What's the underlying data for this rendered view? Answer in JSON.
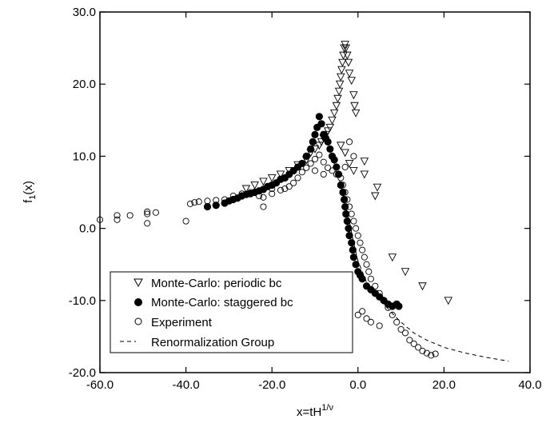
{
  "chart_data": {
    "type": "scatter",
    "title": "",
    "xlabel": {
      "base": "x=tH",
      "sup": "1/ν"
    },
    "ylabel": {
      "base": "f",
      "sub": "1",
      "tail": "(x)"
    },
    "xlim": [
      -60,
      40
    ],
    "ylim": [
      -20,
      30
    ],
    "xticks": [
      -60,
      -40,
      -20,
      0,
      20,
      40
    ],
    "yticks": [
      -20,
      -10,
      0,
      10,
      20,
      30
    ],
    "xtick_labels": [
      "-60.0",
      "-40.0",
      "-20.0",
      "0.0",
      "20.0",
      "40.0"
    ],
    "ytick_labels": [
      "-20.0",
      "-10.0",
      "0.0",
      "10.0",
      "20.0",
      "30.0"
    ],
    "grid": false,
    "legend_position": "bottom-left",
    "series": [
      {
        "name": "Monte-Carlo: periodic bc",
        "marker": "triangle-down-open",
        "points": [
          [
            -26,
            5.5
          ],
          [
            -24,
            6.0
          ],
          [
            -22,
            6.5
          ],
          [
            -20,
            7.0
          ],
          [
            -18,
            7.5
          ],
          [
            -16,
            8.0
          ],
          [
            -14,
            8.8
          ],
          [
            -12,
            9.5
          ],
          [
            -11,
            10.5
          ],
          [
            -10,
            11.0
          ],
          [
            -9,
            11.5
          ],
          [
            -8.5,
            12.0
          ],
          [
            -8,
            12.5
          ],
          [
            -7.5,
            13.0
          ],
          [
            -7,
            13.5
          ],
          [
            -6.5,
            14.0
          ],
          [
            -6,
            15.0
          ],
          [
            -5.5,
            16.0
          ],
          [
            -5,
            17.0
          ],
          [
            -4.7,
            18.0
          ],
          [
            -4.4,
            19.0
          ],
          [
            -4.2,
            20.0
          ],
          [
            -4,
            21.0
          ],
          [
            -3.8,
            22.0
          ],
          [
            -3.6,
            23.0
          ],
          [
            -3.4,
            24.0
          ],
          [
            -3.2,
            25.0
          ],
          [
            -3.0,
            25.5
          ],
          [
            -2.8,
            25.0
          ],
          [
            -2.5,
            24.0
          ],
          [
            -2.2,
            23.0
          ],
          [
            -2.0,
            21.5
          ],
          [
            -1.5,
            20.5
          ],
          [
            -1.0,
            18.5
          ],
          [
            -0.8,
            17.0
          ],
          [
            -0.5,
            16.0
          ],
          [
            1.5,
            9.3
          ],
          [
            1.5,
            7.5
          ],
          [
            4,
            4.5
          ],
          [
            4.5,
            5.7
          ],
          [
            -1,
            8.0
          ],
          [
            -2,
            9.0
          ],
          [
            -3,
            10.5
          ],
          [
            -4,
            11.5
          ],
          [
            8,
            -4.0
          ],
          [
            11,
            -6.0
          ],
          [
            15,
            -8.0
          ],
          [
            21,
            -10.0
          ]
        ]
      },
      {
        "name": "Monte-Carlo: staggered bc",
        "marker": "circle-filled",
        "points": [
          [
            -35,
            3.0
          ],
          [
            -33,
            3.2
          ],
          [
            -31,
            3.5
          ],
          [
            -30,
            3.8
          ],
          [
            -29,
            4.0
          ],
          [
            -28,
            4.2
          ],
          [
            -27,
            4.5
          ],
          [
            -26,
            4.7
          ],
          [
            -25,
            4.8
          ],
          [
            -24,
            5.0
          ],
          [
            -23,
            5.2
          ],
          [
            -22,
            5.4
          ],
          [
            -21,
            5.8
          ],
          [
            -20,
            6.0
          ],
          [
            -19,
            6.3
          ],
          [
            -18,
            6.8
          ],
          [
            -17,
            7.0
          ],
          [
            -16,
            7.5
          ],
          [
            -15,
            8.0
          ],
          [
            -14,
            8.5
          ],
          [
            -13,
            9.0
          ],
          [
            -12,
            10.0
          ],
          [
            -11,
            11.0
          ],
          [
            -10.5,
            12.0
          ],
          [
            -10,
            13.0
          ],
          [
            -9.5,
            14.0
          ],
          [
            -9,
            15.5
          ],
          [
            -8.5,
            14.5
          ],
          [
            -8,
            13.0
          ],
          [
            -7.5,
            12.5
          ],
          [
            -7,
            12.0
          ],
          [
            -6.5,
            11.0
          ],
          [
            -6,
            10.0
          ],
          [
            -5.5,
            9.5
          ],
          [
            -5,
            8.5
          ],
          [
            -4.5,
            7.5
          ],
          [
            -4,
            6.0
          ],
          [
            -3.5,
            5.0
          ],
          [
            -3.2,
            4.0
          ],
          [
            -3,
            3.0
          ],
          [
            -2.8,
            2.0
          ],
          [
            -2.5,
            1.0
          ],
          [
            -2.2,
            0.0
          ],
          [
            -2.0,
            -1.0
          ],
          [
            -1.5,
            -2.0
          ],
          [
            -1.2,
            -3.0
          ],
          [
            -1.0,
            -4.0
          ],
          [
            -0.5,
            -5.0
          ],
          [
            0,
            -6.0
          ],
          [
            0.5,
            -6.5
          ],
          [
            1,
            -7.0
          ],
          [
            2,
            -8.0
          ],
          [
            3,
            -8.5
          ],
          [
            4,
            -9.0
          ],
          [
            5,
            -9.5
          ],
          [
            6,
            -10.0
          ],
          [
            7,
            -10.5
          ],
          [
            8,
            -10.8
          ],
          [
            9,
            -10.5
          ],
          [
            9.5,
            -10.8
          ]
        ]
      },
      {
        "name": "Experiment",
        "marker": "circle-open",
        "points": [
          [
            -60,
            1.2
          ],
          [
            -56,
            1.2
          ],
          [
            -56,
            1.8
          ],
          [
            -53,
            1.8
          ],
          [
            -49,
            0.7
          ],
          [
            -49,
            2.0
          ],
          [
            -49,
            2.3
          ],
          [
            -47,
            2.2
          ],
          [
            -40,
            1.0
          ],
          [
            -39,
            3.4
          ],
          [
            -38,
            3.6
          ],
          [
            -37,
            3.7
          ],
          [
            -35,
            3.8
          ],
          [
            -33,
            3.9
          ],
          [
            -31,
            4.0
          ],
          [
            -29,
            4.5
          ],
          [
            -27,
            4.8
          ],
          [
            -25,
            5.0
          ],
          [
            -23,
            4.5
          ],
          [
            -22,
            4.3
          ],
          [
            -20,
            4.8
          ],
          [
            -18,
            5.3
          ],
          [
            -17,
            5.5
          ],
          [
            -16,
            5.8
          ],
          [
            -15,
            6.3
          ],
          [
            -14,
            7.0
          ],
          [
            -13,
            7.8
          ],
          [
            -12,
            8.4
          ],
          [
            -11,
            9.0
          ],
          [
            -10,
            9.6
          ],
          [
            -9,
            10.2
          ],
          [
            -8,
            9.2
          ],
          [
            -7,
            8.4
          ],
          [
            -6,
            8.0
          ],
          [
            -5,
            7.5
          ],
          [
            -4,
            7.0
          ],
          [
            -3.5,
            6.0
          ],
          [
            -3,
            5.0
          ],
          [
            -2.5,
            4.0
          ],
          [
            -2,
            3.0
          ],
          [
            -1.5,
            2.0
          ],
          [
            -1.0,
            1.0
          ],
          [
            -0.5,
            0.0
          ],
          [
            0,
            -1.0
          ],
          [
            0.5,
            -2.0
          ],
          [
            1,
            -3.0
          ],
          [
            1.5,
            -4.0
          ],
          [
            2,
            -5.0
          ],
          [
            2.5,
            -6.0
          ],
          [
            3,
            -7.0
          ],
          [
            4,
            -8.0
          ],
          [
            5,
            -9.0
          ],
          [
            6,
            -10.0
          ],
          [
            7,
            -11.0
          ],
          [
            8,
            -12.0
          ],
          [
            9,
            -13.0
          ],
          [
            10,
            -14.0
          ],
          [
            11,
            -14.5
          ],
          [
            12,
            -15.5
          ],
          [
            13,
            -16.0
          ],
          [
            14,
            -16.5
          ],
          [
            15,
            -17.0
          ],
          [
            16,
            -17.3
          ],
          [
            17,
            -17.6
          ],
          [
            18,
            -17.4
          ],
          [
            -2,
            12.0
          ],
          [
            -3,
            8.5
          ],
          [
            -1,
            10.0
          ],
          [
            0,
            -12.0
          ],
          [
            1,
            -11.5
          ],
          [
            2,
            -12.5
          ],
          [
            3,
            -13.0
          ],
          [
            5,
            -13.5
          ],
          [
            -22,
            3.0
          ],
          [
            -20,
            5.5
          ],
          [
            -10,
            8.0
          ],
          [
            -8,
            7.5
          ]
        ]
      },
      {
        "name": "Renormalization Group",
        "line": "dashed",
        "points": [
          [
            -7,
            11.3
          ],
          [
            -6,
            10.0
          ],
          [
            -5,
            8.0
          ],
          [
            -4,
            6.0
          ],
          [
            -3,
            3.5
          ],
          [
            -2,
            1.0
          ],
          [
            -1,
            -2.0
          ],
          [
            0,
            -4.5
          ],
          [
            1,
            -6.0
          ],
          [
            2,
            -7.5
          ],
          [
            4,
            -9.0
          ],
          [
            6,
            -10.5
          ],
          [
            8,
            -11.8
          ],
          [
            10,
            -13.0
          ],
          [
            13,
            -14.5
          ],
          [
            16,
            -15.5
          ],
          [
            20,
            -16.5
          ],
          [
            25,
            -17.3
          ],
          [
            30,
            -17.9
          ],
          [
            35,
            -18.4
          ]
        ]
      }
    ]
  }
}
